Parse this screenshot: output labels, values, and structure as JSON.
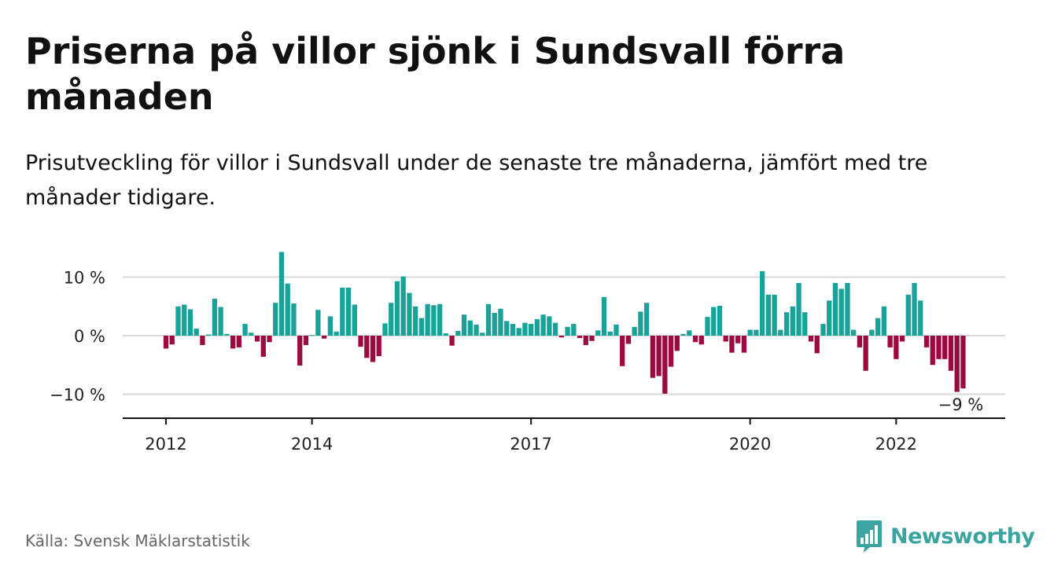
{
  "header": {
    "title": "Priserna på villor sjönk i Sundsvall förra månaden",
    "subtitle": "Prisutveckling för villor i Sundsvall under de senaste tre månaderna, jämfört med tre månader tidigare."
  },
  "footer": {
    "source": "Källa: Svensk Mäklarstatistik",
    "brand": "Newsworthy",
    "brand_icon": "bar-chart-speech-bubble-icon",
    "brand_color": "#3aa5a0"
  },
  "chart_data": {
    "type": "bar",
    "unit": "%",
    "ylim": [
      -14,
      18
    ],
    "yticks": [
      {
        "value": 10,
        "label": "10 %"
      },
      {
        "value": 0,
        "label": "0 %"
      },
      {
        "value": -10,
        "label": "−10 %"
      }
    ],
    "xticks": [
      {
        "index": 0,
        "label": "2012"
      },
      {
        "index": 24,
        "label": "2014"
      },
      {
        "index": 60,
        "label": "2017"
      },
      {
        "index": 96,
        "label": "2020"
      },
      {
        "index": 120,
        "label": "2022"
      }
    ],
    "grid": true,
    "colors": {
      "positive": "#17a399",
      "negative": "#9c0a3f"
    },
    "annotation": {
      "index": 131,
      "label": "−9 %"
    },
    "start": "2012-01",
    "values": [
      -2.2,
      -1.5,
      5,
      5.3,
      4.5,
      1.2,
      -1.6,
      0.2,
      6.3,
      4.9,
      0.3,
      -2.2,
      -2,
      2,
      0.5,
      -1,
      -3.6,
      -1.1,
      5.6,
      14.3,
      8.9,
      5.5,
      -5.1,
      -1.6,
      0.1,
      4.4,
      -0.5,
      3.3,
      0.7,
      8.2,
      8.2,
      5.3,
      -1.9,
      -3.8,
      -4.5,
      -3.5,
      2.1,
      5.6,
      9.3,
      10.1,
      7.3,
      5,
      3,
      5.4,
      5.2,
      5.4,
      0.4,
      -1.7,
      0.8,
      3.6,
      2.6,
      1.9,
      0.5,
      5.4,
      3.9,
      4.6,
      2.5,
      2,
      1.3,
      2.2,
      2,
      2.8,
      3.6,
      3.3,
      2.2,
      -0.3,
      1.5,
      2,
      -0.4,
      -1.6,
      -0.9,
      0.9,
      6.6,
      0.7,
      1.9,
      -5.2,
      -1.4,
      1.5,
      4.1,
      5.6,
      -7.2,
      -6.9,
      -9.9,
      -5.3,
      -2.6,
      0.3,
      0.9,
      -1.1,
      -1.5,
      3.2,
      4.9,
      5.1,
      -1,
      -2.9,
      -1.3,
      -2.9,
      1,
      1,
      11,
      7,
      7,
      1,
      4,
      5,
      9,
      4,
      -1,
      -3,
      2,
      6,
      9,
      8,
      9,
      1,
      -2,
      -6,
      1,
      3,
      5,
      -2,
      -4,
      -1,
      7,
      9,
      6,
      -2,
      -5,
      -4,
      -4,
      -6,
      -9.6,
      -9
    ]
  }
}
